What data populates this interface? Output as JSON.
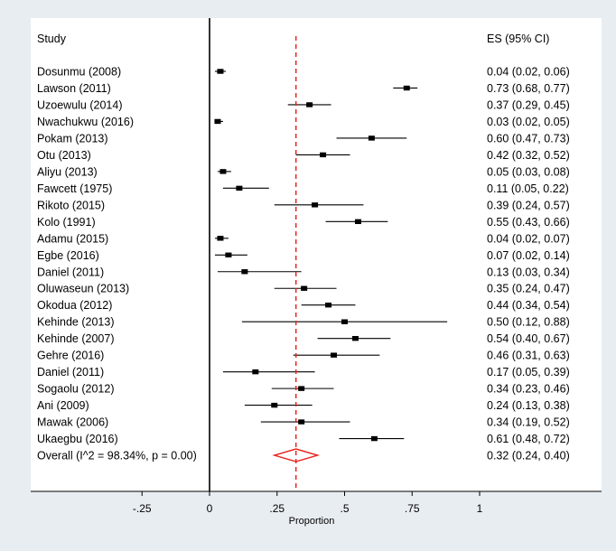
{
  "chart_data": {
    "type": "forest",
    "column_headers": {
      "study": "Study",
      "es": "ES (95% CI)"
    },
    "studies": [
      {
        "label": "Dosunmu (2008)",
        "es": 0.04,
        "lo": 0.02,
        "hi": 0.06,
        "text": "0.04 (0.02, 0.06)"
      },
      {
        "label": "Lawson (2011)",
        "es": 0.73,
        "lo": 0.68,
        "hi": 0.77,
        "text": "0.73 (0.68, 0.77)"
      },
      {
        "label": "Uzoewulu (2014)",
        "es": 0.37,
        "lo": 0.29,
        "hi": 0.45,
        "text": "0.37 (0.29, 0.45)"
      },
      {
        "label": "Nwachukwu (2016)",
        "es": 0.03,
        "lo": 0.02,
        "hi": 0.05,
        "text": "0.03 (0.02, 0.05)"
      },
      {
        "label": "Pokam (2013)",
        "es": 0.6,
        "lo": 0.47,
        "hi": 0.73,
        "text": "0.60 (0.47, 0.73)"
      },
      {
        "label": "Otu (2013)",
        "es": 0.42,
        "lo": 0.32,
        "hi": 0.52,
        "text": "0.42 (0.32, 0.52)"
      },
      {
        "label": "Aliyu (2013)",
        "es": 0.05,
        "lo": 0.03,
        "hi": 0.08,
        "text": "0.05 (0.03, 0.08)"
      },
      {
        "label": "Fawcett (1975)",
        "es": 0.11,
        "lo": 0.05,
        "hi": 0.22,
        "text": "0.11 (0.05, 0.22)"
      },
      {
        "label": "Rikoto (2015)",
        "es": 0.39,
        "lo": 0.24,
        "hi": 0.57,
        "text": "0.39 (0.24, 0.57)"
      },
      {
        "label": "Kolo (1991)",
        "es": 0.55,
        "lo": 0.43,
        "hi": 0.66,
        "text": "0.55 (0.43, 0.66)"
      },
      {
        "label": "Adamu (2015)",
        "es": 0.04,
        "lo": 0.02,
        "hi": 0.07,
        "text": "0.04 (0.02, 0.07)"
      },
      {
        "label": "Egbe (2016)",
        "es": 0.07,
        "lo": 0.02,
        "hi": 0.14,
        "text": "0.07 (0.02, 0.14)"
      },
      {
        "label": "Daniel (2011)",
        "es": 0.13,
        "lo": 0.03,
        "hi": 0.34,
        "text": "0.13 (0.03, 0.34)"
      },
      {
        "label": "Oluwaseun (2013)",
        "es": 0.35,
        "lo": 0.24,
        "hi": 0.47,
        "text": "0.35 (0.24, 0.47)"
      },
      {
        "label": "Okodua (2012)",
        "es": 0.44,
        "lo": 0.34,
        "hi": 0.54,
        "text": "0.44 (0.34, 0.54)"
      },
      {
        "label": "Kehinde (2013)",
        "es": 0.5,
        "lo": 0.12,
        "hi": 0.88,
        "text": "0.50 (0.12, 0.88)"
      },
      {
        "label": "Kehinde (2007)",
        "es": 0.54,
        "lo": 0.4,
        "hi": 0.67,
        "text": "0.54 (0.40, 0.67)"
      },
      {
        "label": "Gehre (2016)",
        "es": 0.46,
        "lo": 0.31,
        "hi": 0.63,
        "text": "0.46 (0.31, 0.63)"
      },
      {
        "label": "Daniel (2011)",
        "es": 0.17,
        "lo": 0.05,
        "hi": 0.39,
        "text": "0.17 (0.05, 0.39)"
      },
      {
        "label": "Sogaolu (2012)",
        "es": 0.34,
        "lo": 0.23,
        "hi": 0.46,
        "text": "0.34 (0.23, 0.46)"
      },
      {
        "label": "Ani (2009)",
        "es": 0.24,
        "lo": 0.13,
        "hi": 0.38,
        "text": "0.24 (0.13, 0.38)"
      },
      {
        "label": "Mawak (2006)",
        "es": 0.34,
        "lo": 0.19,
        "hi": 0.52,
        "text": "0.34 (0.19, 0.52)"
      },
      {
        "label": "Ukaegbu (2016)",
        "es": 0.61,
        "lo": 0.48,
        "hi": 0.72,
        "text": "0.61 (0.48, 0.72)"
      }
    ],
    "overall": {
      "label": "Overall  (I^2 = 98.34%, p = 0.00)",
      "es": 0.32,
      "lo": 0.24,
      "hi": 0.4,
      "text": "0.32 (0.24, 0.40)"
    },
    "x_ticks": [
      -0.25,
      0,
      0.25,
      0.5,
      0.75,
      1
    ],
    "x_tick_labels": [
      "-.25",
      "0",
      ".25",
      ".5",
      ".75",
      "1"
    ],
    "xlim": [
      -0.66,
      1.49
    ],
    "xlabel": "Proportion",
    "null_line": 0,
    "colors": {
      "background": "#e8edf2",
      "panel": "#ffffff",
      "overall_diamond": "#e8231f",
      "reference_line": "#e8231f",
      "marker": "#000000"
    }
  }
}
